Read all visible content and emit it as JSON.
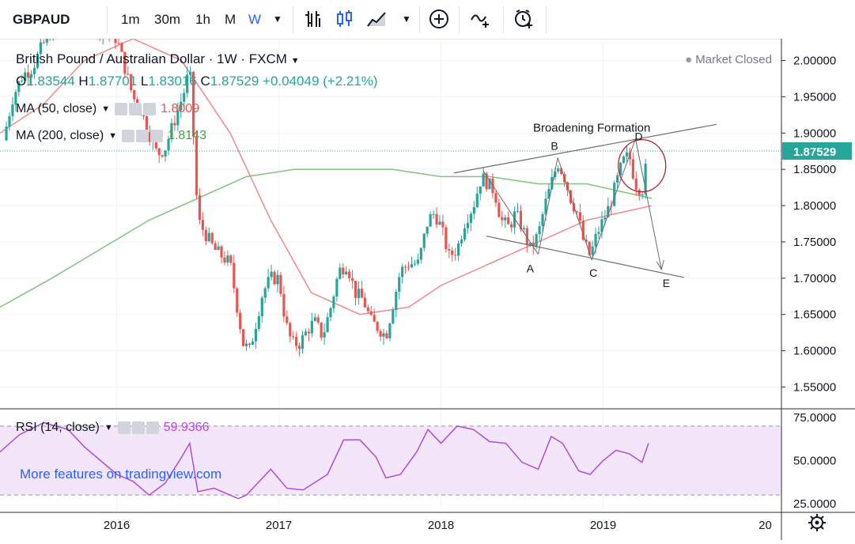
{
  "toolbar": {
    "symbol": "GBPAUD",
    "intervals": [
      "1m",
      "30m",
      "1h",
      "M",
      "W"
    ],
    "active_interval": "W"
  },
  "legend": {
    "title": "British Pound / Australian Dollar · 1W · FXCM",
    "status": "Market Closed",
    "open_label": "O",
    "open": "1.83544",
    "high_label": "H",
    "high": "1.87701",
    "low_label": "L",
    "low": "1.83016",
    "close_label": "C",
    "close": "1.87529",
    "change": "+0.04049 (+2.21%)",
    "ma50_label": "MA (50, close)",
    "ma50_value": "1.8009",
    "ma200_label": "MA (200, close)",
    "ma200_value": "1.8143",
    "rsi_label": "RSI (14, close)",
    "rsi_value": "59.9366",
    "watermark": "More features on tradingview.com",
    "colors": {
      "up": "#26a69a",
      "down": "#ef5350",
      "ma50": "#ef5350",
      "ma200": "#3fa33f",
      "rsi": "#b04ae0",
      "rsi_band": "#f3e5fa"
    }
  },
  "chart_data": [
    {
      "type": "candlestick",
      "title": "British Pound / Australian Dollar · 1W · FXCM",
      "x_ticks": [
        "2016",
        "2017",
        "2018",
        "2019",
        "20"
      ],
      "y_ticks": [
        "2.00000",
        "1.95000",
        "1.90000",
        "1.85000",
        "1.80000",
        "1.75000",
        "1.70000",
        "1.65000",
        "1.60000",
        "1.55000"
      ],
      "last_price": "1.87529",
      "ylim": [
        1.52,
        2.03
      ],
      "xlim": [
        2015.28,
        2020.1
      ],
      "close_series": [
        [
          2015.3,
          1.89
        ],
        [
          2015.36,
          1.95
        ],
        [
          2015.42,
          1.98
        ],
        [
          2015.48,
          1.99
        ],
        [
          2015.54,
          2.02
        ],
        [
          2015.62,
          2.05
        ],
        [
          2015.72,
          2.08
        ],
        [
          2015.85,
          2.05
        ],
        [
          2016.0,
          2.03
        ],
        [
          2016.05,
          1.99
        ],
        [
          2016.1,
          1.95
        ],
        [
          2016.15,
          1.93
        ],
        [
          2016.2,
          1.9
        ],
        [
          2016.25,
          1.87
        ],
        [
          2016.3,
          1.88
        ],
        [
          2016.36,
          1.92
        ],
        [
          2016.42,
          1.96
        ],
        [
          2016.45,
          1.99
        ],
        [
          2016.47,
          1.91
        ],
        [
          2016.5,
          1.78
        ],
        [
          2016.55,
          1.76
        ],
        [
          2016.6,
          1.74
        ],
        [
          2016.65,
          1.73
        ],
        [
          2016.7,
          1.72
        ],
        [
          2016.75,
          1.65
        ],
        [
          2016.78,
          1.61
        ],
        [
          2016.82,
          1.6
        ],
        [
          2016.86,
          1.64
        ],
        [
          2016.9,
          1.68
        ],
        [
          2016.95,
          1.7
        ],
        [
          2017.0,
          1.7
        ],
        [
          2017.04,
          1.64
        ],
        [
          2017.08,
          1.61
        ],
        [
          2017.13,
          1.61
        ],
        [
          2017.18,
          1.63
        ],
        [
          2017.22,
          1.64
        ],
        [
          2017.27,
          1.62
        ],
        [
          2017.32,
          1.66
        ],
        [
          2017.37,
          1.71
        ],
        [
          2017.42,
          1.72
        ],
        [
          2017.47,
          1.68
        ],
        [
          2017.52,
          1.67
        ],
        [
          2017.57,
          1.64
        ],
        [
          2017.62,
          1.63
        ],
        [
          2017.66,
          1.62
        ],
        [
          2017.7,
          1.66
        ],
        [
          2017.75,
          1.71
        ],
        [
          2017.8,
          1.72
        ],
        [
          2017.86,
          1.72
        ],
        [
          2017.92,
          1.78
        ],
        [
          2017.96,
          1.79
        ],
        [
          2018.0,
          1.77
        ],
        [
          2018.05,
          1.73
        ],
        [
          2018.1,
          1.74
        ],
        [
          2018.15,
          1.78
        ],
        [
          2018.2,
          1.8
        ],
        [
          2018.25,
          1.84
        ],
        [
          2018.29,
          1.83
        ],
        [
          2018.33,
          1.82
        ],
        [
          2018.37,
          1.78
        ],
        [
          2018.42,
          1.77
        ],
        [
          2018.46,
          1.79
        ],
        [
          2018.5,
          1.77
        ],
        [
          2018.55,
          1.74
        ],
        [
          2018.6,
          1.76
        ],
        [
          2018.64,
          1.8
        ],
        [
          2018.68,
          1.83
        ],
        [
          2018.72,
          1.86
        ],
        [
          2018.76,
          1.84
        ],
        [
          2018.8,
          1.81
        ],
        [
          2018.84,
          1.79
        ],
        [
          2018.88,
          1.75
        ],
        [
          2018.92,
          1.73
        ],
        [
          2018.96,
          1.76
        ],
        [
          2019.0,
          1.78
        ],
        [
          2019.04,
          1.8
        ],
        [
          2019.08,
          1.83
        ],
        [
          2019.12,
          1.86
        ],
        [
          2019.16,
          1.87
        ],
        [
          2019.2,
          1.83
        ],
        [
          2019.24,
          1.82
        ],
        [
          2019.28,
          1.87529
        ]
      ]
    },
    {
      "type": "line",
      "name": "MA (50, close)",
      "x": [
        2015.28,
        2015.55,
        2015.8,
        2016.1,
        2016.4,
        2016.7,
        2016.95,
        2017.2,
        2017.5,
        2017.8,
        2018.0,
        2018.3,
        2018.5,
        2018.7,
        2018.9,
        2019.1,
        2019.3
      ],
      "values": [
        1.9,
        1.94,
        2.0,
        2.03,
        2.0,
        1.9,
        1.78,
        1.68,
        1.65,
        1.66,
        1.69,
        1.72,
        1.74,
        1.76,
        1.78,
        1.79,
        1.8
      ]
    },
    {
      "type": "line",
      "name": "MA (200, close)",
      "x": [
        2015.28,
        2015.6,
        2015.9,
        2016.2,
        2016.5,
        2016.8,
        2017.1,
        2017.4,
        2017.7,
        2018.0,
        2018.3,
        2018.6,
        2018.9,
        2019.1,
        2019.3
      ],
      "values": [
        1.66,
        1.7,
        1.74,
        1.78,
        1.81,
        1.84,
        1.85,
        1.85,
        1.85,
        1.84,
        1.84,
        1.83,
        1.83,
        1.82,
        1.81
      ]
    },
    {
      "type": "line",
      "name": "RSI (14, close)",
      "y_ticks": [
        "75.0000",
        "50.0000",
        "25.0000"
      ],
      "band": [
        30,
        70
      ],
      "ylim": [
        20,
        80
      ],
      "x": [
        2015.28,
        2015.4,
        2015.55,
        2015.7,
        2015.8,
        2015.9,
        2016.0,
        2016.1,
        2016.2,
        2016.3,
        2016.4,
        2016.45,
        2016.5,
        2016.6,
        2016.75,
        2016.8,
        2016.95,
        2017.05,
        2017.15,
        2017.3,
        2017.4,
        2017.5,
        2017.6,
        2017.66,
        2017.75,
        2017.85,
        2017.92,
        2018.0,
        2018.1,
        2018.2,
        2018.3,
        2018.4,
        2018.5,
        2018.6,
        2018.68,
        2018.75,
        2018.85,
        2018.92,
        2019.0,
        2019.08,
        2019.16,
        2019.24,
        2019.28
      ],
      "values": [
        55,
        65,
        72,
        68,
        58,
        50,
        42,
        38,
        30,
        37,
        52,
        60,
        32,
        34,
        28,
        30,
        45,
        34,
        33,
        42,
        62,
        62,
        52,
        40,
        42,
        55,
        68,
        60,
        70,
        68,
        61,
        60,
        49,
        45,
        64,
        60,
        44,
        42,
        50,
        56,
        54,
        49,
        60
      ]
    }
  ],
  "annotations": {
    "pattern_title": "Broadening Formation",
    "points": [
      "A",
      "B",
      "C",
      "D",
      "E"
    ]
  }
}
